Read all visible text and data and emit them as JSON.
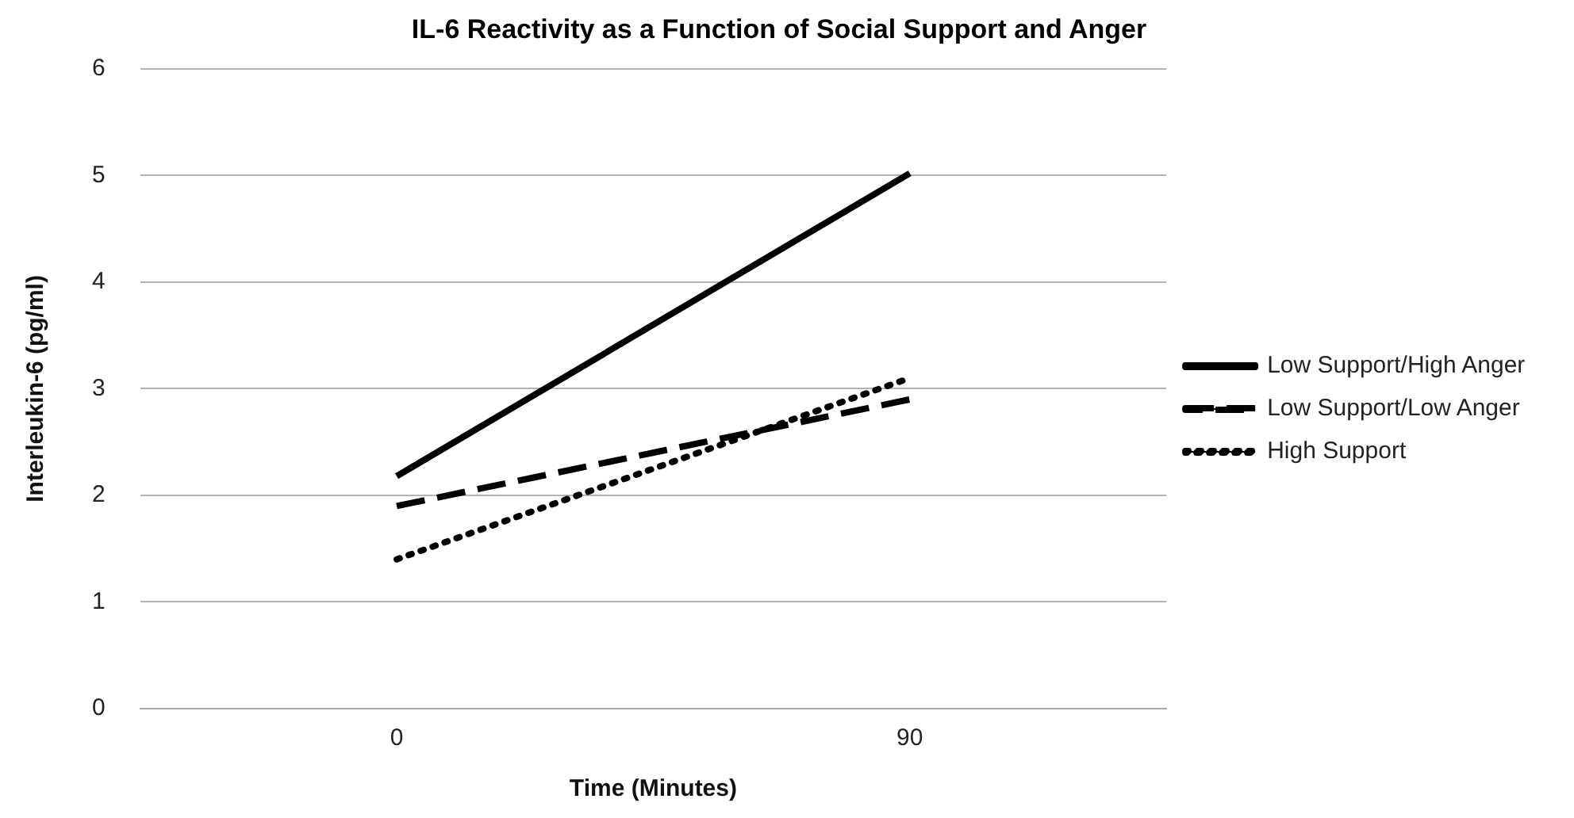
{
  "chart_data": {
    "type": "line",
    "title": "IL-6 Reactivity as a Function of Social Support and Anger",
    "xlabel": "Time (Minutes)",
    "ylabel": "Interleukin-6 (pg/ml)",
    "categories": [
      "0",
      "90"
    ],
    "series": [
      {
        "name": "Low Support/High Anger",
        "color": "#000000",
        "values": [
          2.18,
          5.02
        ],
        "line_style": "solid"
      },
      {
        "name": "Low Support/Low Anger",
        "color": "#000000",
        "values": [
          1.9,
          2.9
        ],
        "line_style": "dashed"
      },
      {
        "name": "High Support",
        "color": "#000000",
        "values": [
          1.4,
          3.1
        ],
        "line_style": "dotted"
      }
    ],
    "ylim": [
      0,
      6
    ],
    "yticks": [
      0,
      1,
      2,
      3,
      4,
      5,
      6
    ],
    "grid": "y",
    "legend": "right",
    "marker": "none"
  }
}
